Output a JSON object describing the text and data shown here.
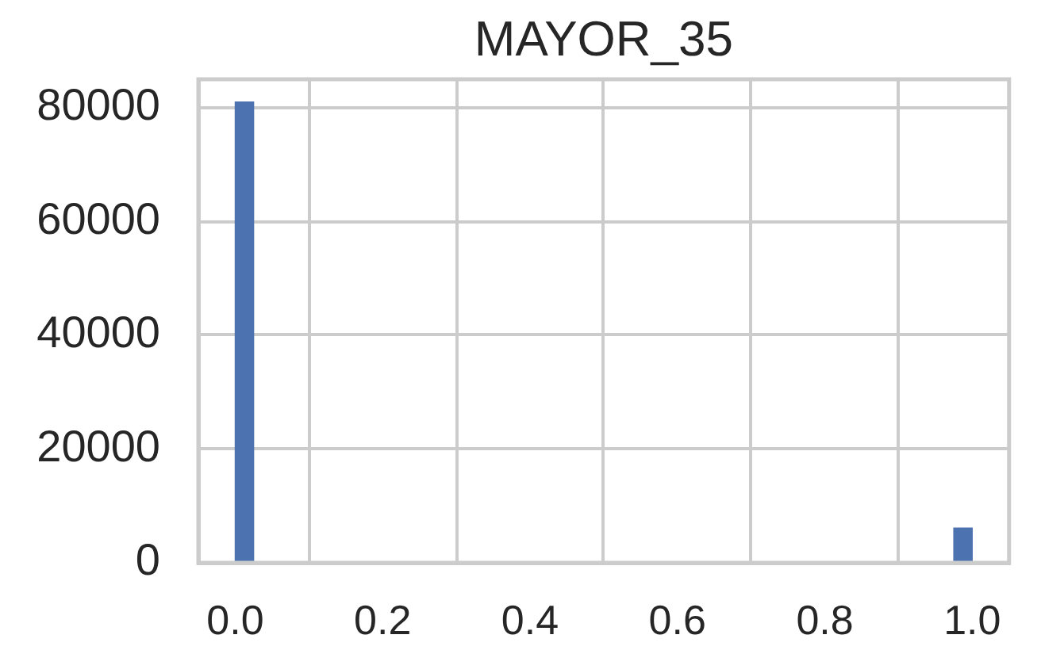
{
  "chart_data": {
    "type": "histogram",
    "title": "MAYOR_35",
    "bins": [
      0,
      0.025,
      0.05,
      0.075,
      0.1,
      0.125,
      0.15,
      0.175,
      0.2,
      0.225,
      0.25,
      0.275,
      0.3,
      0.325,
      0.35,
      0.375,
      0.4,
      0.425,
      0.45,
      0.475,
      0.5,
      0.525,
      0.55,
      0.575,
      0.6,
      0.625,
      0.65,
      0.675,
      0.7,
      0.725,
      0.75,
      0.775,
      0.8,
      0.825,
      0.85,
      0.875,
      0.9,
      0.925,
      0.95,
      0.975,
      1
    ],
    "values": [
      81000,
      0,
      0,
      0,
      0,
      0,
      0,
      0,
      0,
      0,
      0,
      0,
      0,
      0,
      0,
      0,
      0,
      0,
      0,
      0,
      0,
      0,
      0,
      0,
      0,
      0,
      0,
      0,
      0,
      0,
      0,
      0,
      0,
      0,
      0,
      0,
      0,
      0,
      0,
      6100
    ],
    "color": "#4c72b0",
    "xlim": [
      -0.05,
      1.05
    ],
    "xticks": [
      {
        "value": 0,
        "label": "0.0"
      },
      {
        "value": 0.2,
        "label": "0.2"
      },
      {
        "value": 0.4,
        "label": "0.4"
      },
      {
        "value": 0.6,
        "label": "0.6"
      },
      {
        "value": 0.8,
        "label": "0.8"
      },
      {
        "value": 1,
        "label": "1.0"
      }
    ],
    "ylim": [
      0,
      85000
    ],
    "yticks": [
      0,
      20000,
      40000,
      60000,
      80000
    ],
    "grid": true
  }
}
